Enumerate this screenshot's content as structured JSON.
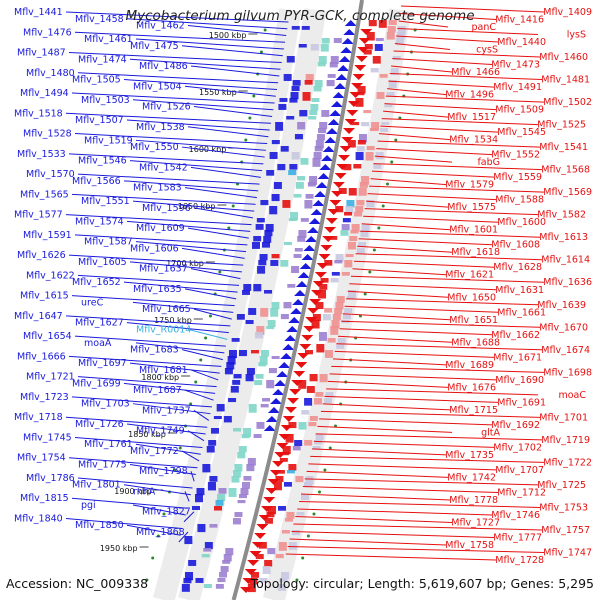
{
  "title": "Mycobacterium gilvum PYR-GCK, complete genome",
  "footer": {
    "accession": "Accession: NC_009338",
    "summary": "Topology: circular; Length: 5,619,607 bp; Genes: 5,295"
  },
  "colors": {
    "forward": "#1a1adc",
    "reverse": "#e61010",
    "rna": "#3ab0e0",
    "backbone": "#8c8c8c"
  },
  "ticks": [
    "1500 kbp",
    "1550 kbp",
    "1600 kbp",
    "1650 kbp",
    "1700 kbp",
    "1750 kbp",
    "1800 kbp",
    "1850 kbp",
    "1900 kbp",
    "1950 kbp"
  ],
  "left_labels": [
    "Mflv_1441",
    "Mflv_1458",
    "Mflv_1462",
    "Mflv_1476",
    "Mflv_1461",
    "Mflv_1475",
    "Mflv_1487",
    "Mflv_1474",
    "Mflv_1486",
    "Mflv_1480",
    "Mflv_1505",
    "Mflv_1504",
    "Mflv_1494",
    "Mflv_1503",
    "Mflv_1526",
    "Mflv_1518",
    "Mflv_1507",
    "Mflv_1538",
    "Mflv_1528",
    "Mflv_1519",
    "Mflv_1550",
    "Mflv_1533",
    "Mflv_1546",
    "Mflv_1542",
    "Mflv_1570",
    "Mflv_1566",
    "Mflv_1583",
    "Mflv_1565",
    "Mflv_1551",
    "Mflv_1596",
    "Mflv_1577",
    "Mflv_1574",
    "Mflv_1609",
    "Mflv_1591",
    "Mflv_1587",
    "Mflv_1606",
    "Mflv_1626",
    "Mflv_1605",
    "Mflv_1637",
    "Mflv_1622",
    "Mflv_1652",
    "Mflv_1635",
    "Mflv_1615",
    "ureC",
    "Mflv_1665",
    "Mflv_1647",
    "Mflv_1627",
    "Mflv_R0014",
    "Mflv_1654",
    "moaA",
    "Mflv_1683",
    "Mflv_1666",
    "Mflv_1697",
    "Mflv_1681",
    "Mflv_1721",
    "Mflv_1699",
    "Mflv_1687",
    "Mflv_1723",
    "Mflv_1703",
    "Mflv_1737",
    "Mflv_1718",
    "Mflv_1726",
    "Mflv_1749",
    "Mflv_1745",
    "Mflv_1761",
    "Mflv_1772",
    "Mflv_1754",
    "Mflv_1775",
    "Mflv_1798",
    "Mflv_1786",
    "Mflv_1801",
    "rnhA",
    "Mflv_1815",
    "pgi",
    "Mflv_1827",
    "Mflv_1840",
    "Mflv_1850",
    "Mflv_1868"
  ],
  "right_labels": [
    "Mflv_1409",
    "Mflv_1416",
    "panC",
    "lysS",
    "Mflv_1440",
    "cysS",
    "Mflv_1460",
    "Mflv_1473",
    "Mflv_1466",
    "Mflv_1481",
    "Mflv_1491",
    "Mflv_1496",
    "Mflv_1502",
    "Mflv_1509",
    "Mflv_1517",
    "Mflv_1525",
    "Mflv_1545",
    "Mflv_1534",
    "Mflv_1541",
    "Mflv_1552",
    "fabG",
    "Mflv_1568",
    "Mflv_1559",
    "Mflv_1579",
    "Mflv_1569",
    "Mflv_1588",
    "Mflv_1575",
    "Mflv_1582",
    "Mflv_1600",
    "Mflv_1601",
    "Mflv_1613",
    "Mflv_1608",
    "Mflv_1618",
    "Mflv_1614",
    "Mflv_1628",
    "Mflv_1621",
    "Mflv_1636",
    "Mflv_1631",
    "Mflv_1650",
    "Mflv_1639",
    "Mflv_1661",
    "Mflv_1651",
    "Mflv_1670",
    "Mflv_1662",
    "Mflv_1688",
    "Mflv_1674",
    "Mflv_1671",
    "Mflv_1689",
    "Mflv_1698",
    "Mflv_1690",
    "Mflv_1676",
    "moaC",
    "Mflv_1691",
    "Mflv_1715",
    "Mflv_1701",
    "Mflv_1692",
    "gltA",
    "Mflv_1719",
    "Mflv_1702",
    "Mflv_1735",
    "Mflv_1722",
    "Mflv_1707",
    "Mflv_1742",
    "Mflv_1725",
    "Mflv_1712",
    "Mflv_1778",
    "Mflv_1753",
    "Mflv_1746",
    "Mflv_1727",
    "Mflv_1757",
    "Mflv_1777",
    "Mflv_1758",
    "Mflv_1747",
    "Mflv_1728"
  ]
}
